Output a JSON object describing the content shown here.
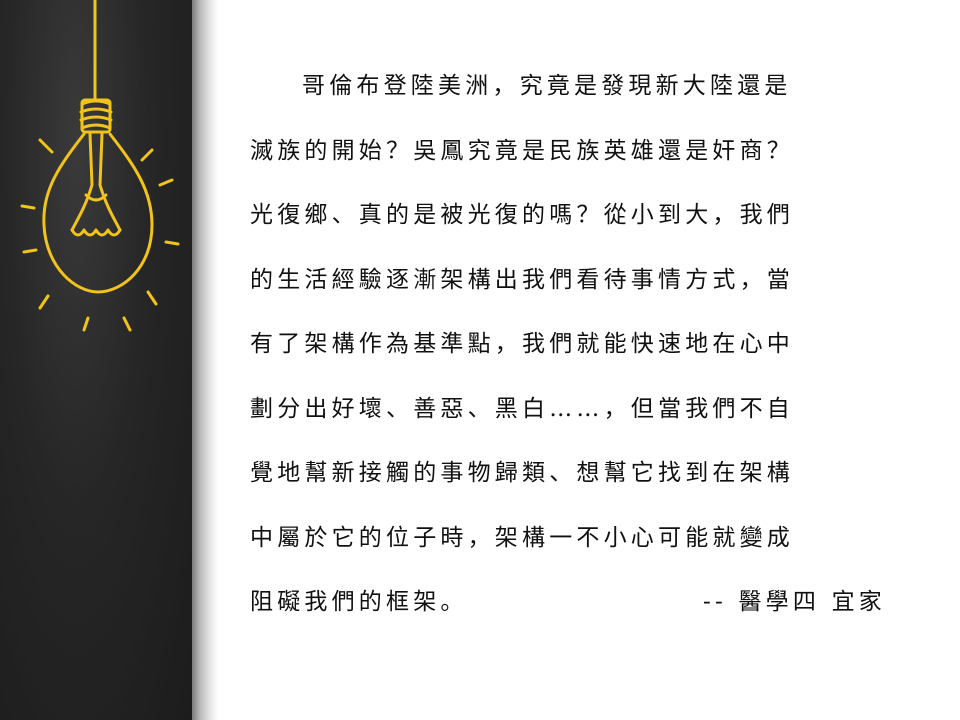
{
  "essay": {
    "lines": [
      "哥倫布登陸美洲，究竟是發現新大陸還是",
      "滅族的開始？吳鳳究竟是民族英雄還是奸商？",
      "光復鄉、真的是被光復的嗎？從小到大，我們",
      "的生活經驗逐漸架構出我們看待事情方式，當",
      "有了架構作為基準點，我們就能快速地在心中",
      "劃分出好壞、善惡、黑白……，但當我們不自",
      "覺地幫新接觸的事物歸類、想幫它找到在架構",
      "中屬於它的位子時，架構一不小心可能就變成",
      "阻礙我們的框架。"
    ],
    "signature": "-- 醫學四 宜家"
  },
  "colors": {
    "panel": "#262626",
    "bulb": "#f2c318",
    "text": "#111111"
  },
  "icons": {
    "decoration": "light-bulb-icon"
  }
}
